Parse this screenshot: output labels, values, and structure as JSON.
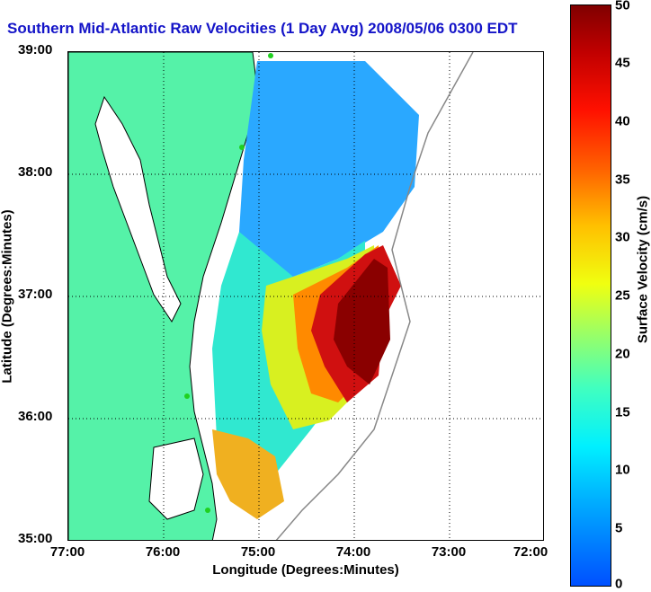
{
  "title": "Southern Mid-Atlantic Raw Velocities (1 Day Avg) 2008/05/06 0300 EDT",
  "x_axis": {
    "label": "Longitude (Degrees:Minutes)",
    "ticks": [
      "77:00",
      "76:00",
      "75:00",
      "74:00",
      "73:00",
      "72:00"
    ]
  },
  "y_axis": {
    "label": "Latitude (Degrees:Minutes)",
    "ticks": [
      "39:00",
      "38:00",
      "37:00",
      "36:00",
      "35:00"
    ]
  },
  "colorbar": {
    "label": "Surface Velocity (cm/s)",
    "ticks": [
      "50",
      "45",
      "40",
      "35",
      "30",
      "25",
      "20",
      "15",
      "10",
      "5",
      "0"
    ],
    "range": [
      0,
      50
    ]
  },
  "colors": {
    "land": "#55f2a8",
    "title": "#1414c8",
    "high": "#800000",
    "low": "#0050ff"
  }
}
